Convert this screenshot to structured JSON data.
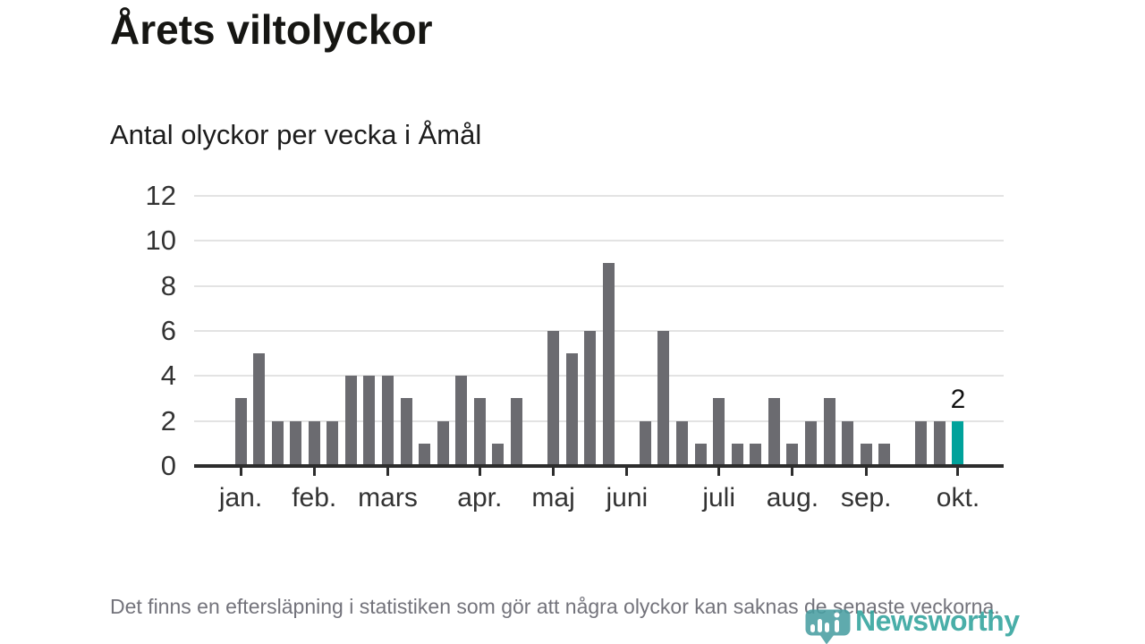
{
  "header": {
    "title": "Årets viltolyckor",
    "subtitle": "Antal olyckor per vecka i Åmål"
  },
  "chart_data": {
    "type": "bar",
    "title": "Årets viltolyckor",
    "subtitle": "Antal olyckor per vecka i Åmål",
    "x_unit": "vecka",
    "values": [
      3,
      5,
      2,
      2,
      2,
      2,
      4,
      4,
      4,
      3,
      1,
      2,
      4,
      3,
      1,
      3,
      0,
      6,
      5,
      6,
      9,
      0,
      2,
      6,
      2,
      1,
      3,
      1,
      1,
      3,
      1,
      2,
      3,
      2,
      1,
      1,
      0,
      2,
      2,
      2
    ],
    "months": [
      {
        "label": "jan.",
        "week_index": 0
      },
      {
        "label": "feb.",
        "week_index": 4
      },
      {
        "label": "mars",
        "week_index": 8
      },
      {
        "label": "apr.",
        "week_index": 13
      },
      {
        "label": "maj",
        "week_index": 17
      },
      {
        "label": "juni",
        "week_index": 21
      },
      {
        "label": "juli",
        "week_index": 26
      },
      {
        "label": "aug.",
        "week_index": 30
      },
      {
        "label": "sep.",
        "week_index": 34
      },
      {
        "label": "okt.",
        "week_index": 39
      }
    ],
    "ylim": [
      0,
      12
    ],
    "yticks": [
      0,
      2,
      4,
      6,
      8,
      10,
      12
    ],
    "grid": "horizontal",
    "bar_color": "#6b6b70",
    "highlight": {
      "index": 39,
      "label": "2",
      "color": "#00a29b"
    }
  },
  "footnote": {
    "text": "Det finns en eftersläpning i statistiken som gör att några olyckor kan saknas de senaste veckorna."
  },
  "logo": {
    "name": "Newsworthy",
    "text_color": "#31a39d",
    "icon_color": "#4a9fa2"
  }
}
